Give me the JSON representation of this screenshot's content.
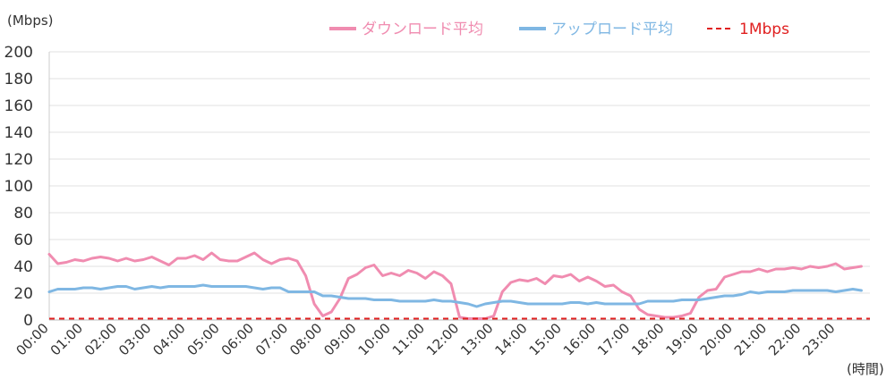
{
  "chart_data": {
    "type": "line",
    "y_unit_label": "(Mbps)",
    "x_unit_label": "(時間)",
    "ylim": [
      0,
      200
    ],
    "y_ticks": [
      0,
      20,
      40,
      60,
      80,
      100,
      120,
      140,
      160,
      180,
      200
    ],
    "grid": true,
    "legend_position": "top-right",
    "x_labels": [
      "00:00",
      "01:00",
      "02:00",
      "03:00",
      "04:00",
      "05:00",
      "06:00",
      "07:00",
      "08:00",
      "09:00",
      "10:00",
      "11:00",
      "12:00",
      "13:00",
      "14:00",
      "15:00",
      "16:00",
      "17:00",
      "18:00",
      "19:00",
      "20:00",
      "21:00",
      "22:00",
      "23:00"
    ],
    "points_per_hour": 4,
    "series": [
      {
        "name": "ダウンロード平均",
        "color": "#f08cb0",
        "style": "solid",
        "values": [
          49,
          42,
          43,
          45,
          44,
          46,
          47,
          46,
          44,
          46,
          44,
          45,
          47,
          44,
          41,
          46,
          46,
          48,
          45,
          50,
          45,
          44,
          44,
          47,
          50,
          45,
          42,
          45,
          46,
          44,
          33,
          12,
          3,
          6,
          16,
          31,
          34,
          39,
          41,
          33,
          35,
          33,
          37,
          35,
          31,
          36,
          33,
          27,
          2,
          1,
          1,
          1,
          3,
          21,
          28,
          30,
          29,
          31,
          27,
          33,
          32,
          34,
          29,
          32,
          29,
          25,
          26,
          21,
          18,
          8,
          4,
          3,
          2,
          2,
          3,
          5,
          17,
          22,
          23,
          32,
          34,
          36,
          36,
          38,
          36,
          38,
          38,
          39,
          38,
          40,
          39,
          40,
          42,
          38,
          39,
          40
        ]
      },
      {
        "name": "アップロード平均",
        "color": "#7fb7e3",
        "style": "solid",
        "values": [
          21,
          23,
          23,
          23,
          24,
          24,
          23,
          24,
          25,
          25,
          23,
          24,
          25,
          24,
          25,
          25,
          25,
          25,
          26,
          25,
          25,
          25,
          25,
          25,
          24,
          23,
          24,
          24,
          21,
          21,
          21,
          21,
          18,
          18,
          17,
          16,
          16,
          16,
          15,
          15,
          15,
          14,
          14,
          14,
          14,
          15,
          14,
          14,
          13,
          12,
          10,
          12,
          13,
          14,
          14,
          13,
          12,
          12,
          12,
          12,
          12,
          13,
          13,
          12,
          13,
          12,
          12,
          12,
          12,
          12,
          14,
          14,
          14,
          14,
          15,
          15,
          15,
          16,
          17,
          18,
          18,
          19,
          21,
          20,
          21,
          21,
          21,
          22,
          22,
          22,
          22,
          22,
          21,
          22,
          23,
          22
        ]
      },
      {
        "name": "1Mbps",
        "color": "#e02020",
        "style": "dashed",
        "values": [
          1,
          1
        ]
      }
    ]
  }
}
